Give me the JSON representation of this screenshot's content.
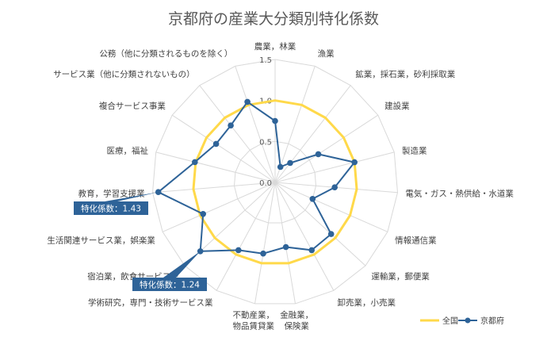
{
  "chart_data": {
    "type": "radar",
    "title": "京都府の産業大分類別特化係数",
    "categories": [
      "農業，林業",
      "漁業",
      "鉱業，採石業，砂利採取業",
      "建設業",
      "製造業",
      "電気・ガス・熱供給・水道業",
      "情報通信業",
      "運輸業，郵便業",
      "卸売業，小売業",
      "金融業，保険業",
      "不動産業，物品賃貸業",
      "学術研究，専門・技術サービス業",
      "宿泊業，飲食サービス業",
      "生活関連サービス業，娯楽業",
      "教育，学習支援業",
      "医療，福祉",
      "複合サービス事業",
      "サービス業（他に分類されないもの）",
      "公務（他に分類されるものを除く）"
    ],
    "rlim": [
      0,
      1.5
    ],
    "rticks": [
      "0.0",
      "0.5",
      "1.0",
      "1.5"
    ],
    "grid": true,
    "legend_position": "bottom-right",
    "series": [
      {
        "name": "全国",
        "color": "#FFD94A",
        "values": [
          1,
          1,
          1,
          1,
          1,
          1,
          1,
          1,
          1,
          1,
          1,
          1,
          1,
          1,
          1,
          1,
          1,
          1,
          1
        ]
      },
      {
        "name": "京都府",
        "color": "#2E6398",
        "values": [
          0.75,
          0.2,
          0.3,
          0.63,
          1.0,
          0.73,
          0.5,
          0.93,
          0.94,
          0.8,
          0.88,
          0.94,
          1.24,
          0.96,
          1.43,
          1.01,
          0.86,
          0.88,
          1.04
        ]
      }
    ],
    "callouts": [
      {
        "text": "特化係数：1.43"
      },
      {
        "text": "特化係数：1.24"
      }
    ]
  }
}
